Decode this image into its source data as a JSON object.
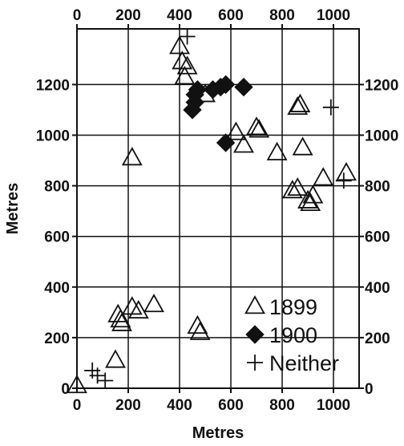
{
  "chart_data": {
    "type": "scatter",
    "xlabel": "Metres",
    "ylabel": "Metres",
    "xlim": [
      0,
      1100
    ],
    "ylim": [
      0,
      1420
    ],
    "x_ticks": [
      0,
      200,
      400,
      600,
      800,
      1000
    ],
    "y_ticks": [
      0,
      200,
      400,
      600,
      800,
      1000,
      1200
    ],
    "x_tick_labels": [
      "0",
      "200",
      "400",
      "600",
      "800",
      "1000"
    ],
    "y_tick_labels": [
      "0",
      "200",
      "400",
      "600",
      "800",
      "1000",
      "1200"
    ],
    "grid": true,
    "legend_position": "bottom-right",
    "series": [
      {
        "name": "1899",
        "marker": "open-triangle",
        "x": [
          0,
          150,
          160,
          170,
          175,
          215,
          240,
          300,
          470,
          480,
          215,
          400,
          410,
          420,
          430,
          500,
          620,
          650,
          700,
          710,
          780,
          860,
          870,
          860,
          880,
          840,
          900,
          910,
          920,
          960,
          1050
        ],
        "y": [
          10,
          110,
          290,
          270,
          255,
          320,
          305,
          330,
          245,
          220,
          910,
          1350,
          1290,
          1230,
          1270,
          1160,
          1010,
          960,
          1030,
          1020,
          930,
          1110,
          1120,
          790,
          950,
          780,
          740,
          730,
          760,
          830,
          850
        ]
      },
      {
        "name": "1900",
        "marker": "filled-diamond",
        "x": [
          450,
          460,
          470,
          530,
          560,
          580,
          650,
          580,
          460
        ],
        "y": [
          1100,
          1130,
          1180,
          1180,
          1190,
          1200,
          1190,
          970,
          1160
        ]
      },
      {
        "name": "Neither",
        "marker": "plus",
        "x": [
          430,
          60,
          80,
          110,
          990,
          1040
        ],
        "y": [
          1390,
          70,
          50,
          30,
          1110,
          820
        ]
      }
    ]
  }
}
